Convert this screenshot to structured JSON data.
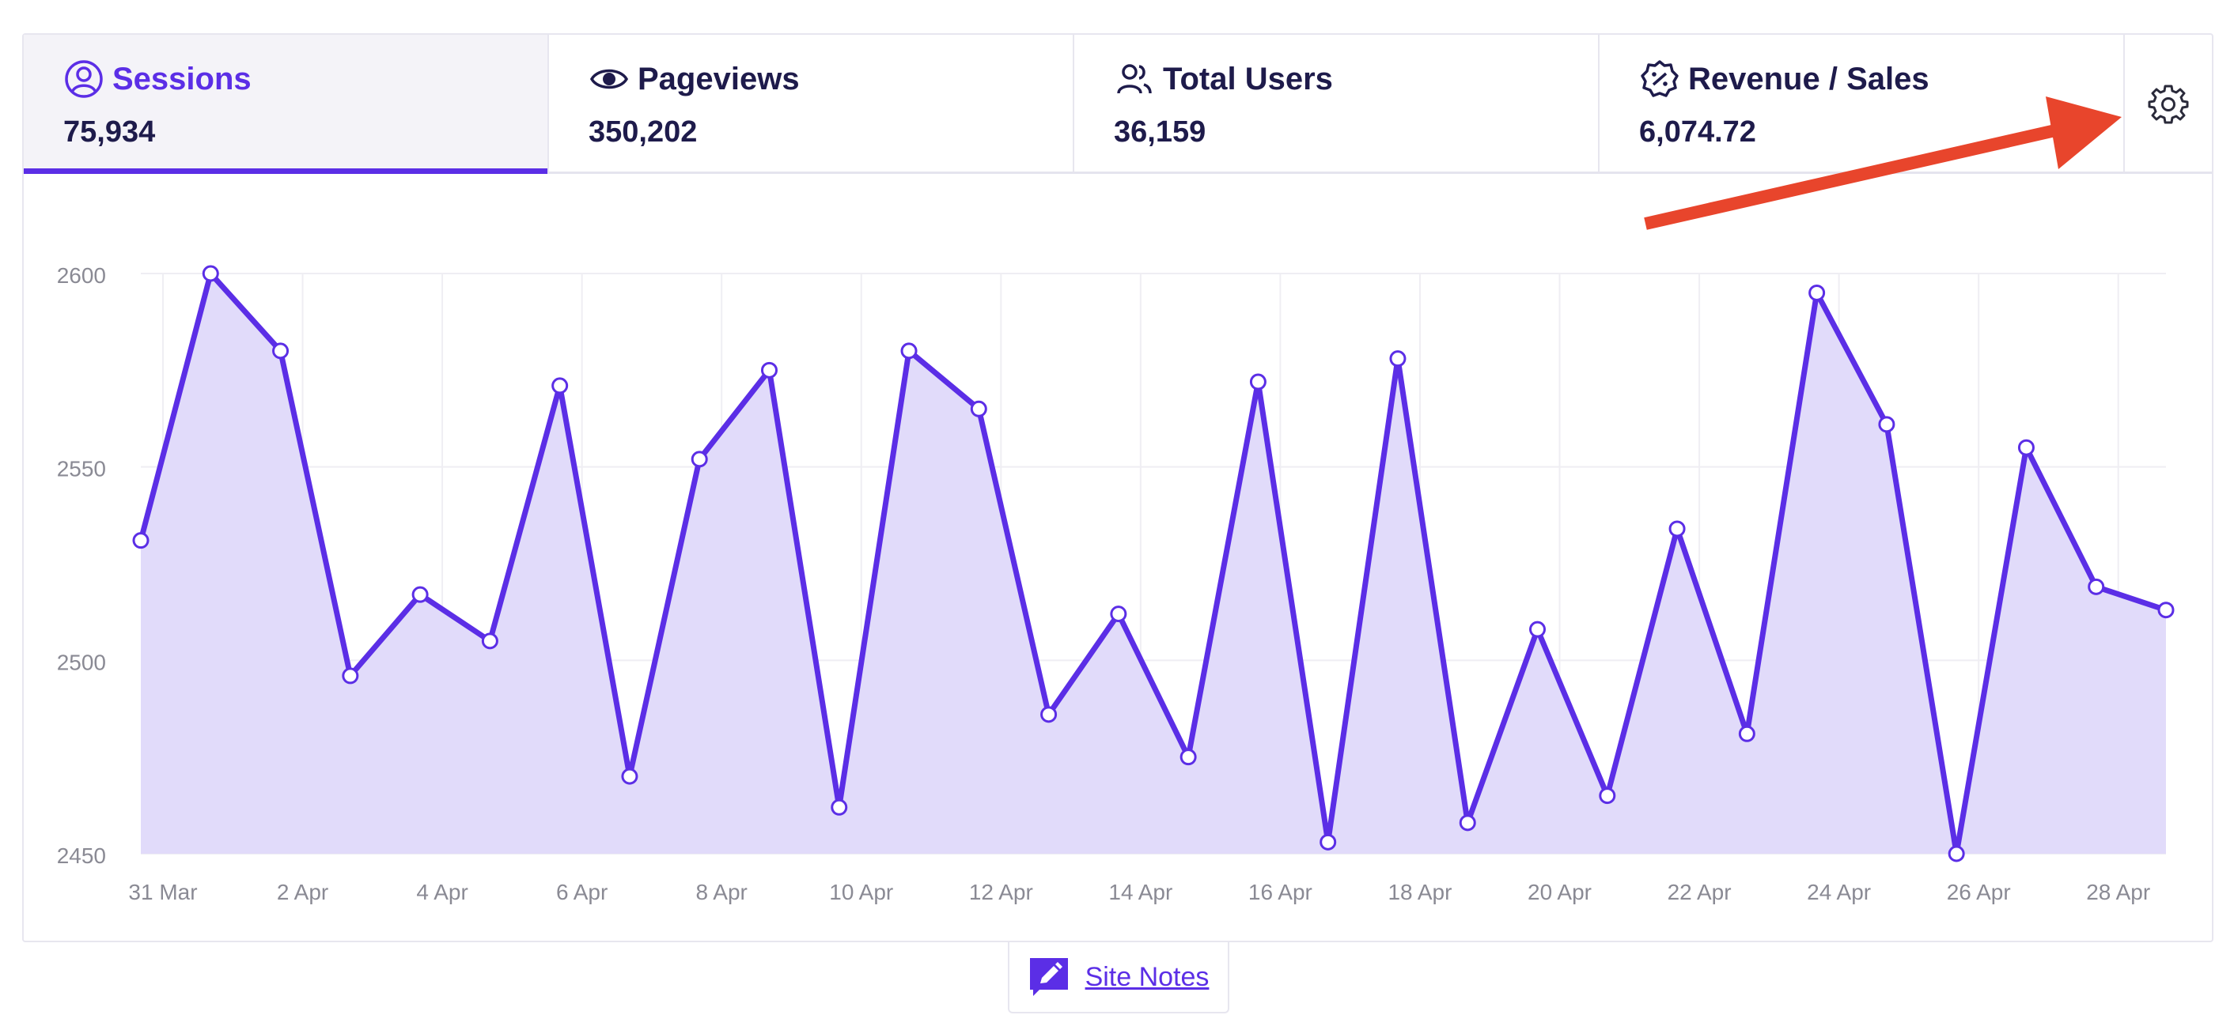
{
  "tabs": [
    {
      "label": "Sessions",
      "value": "75,934",
      "icon": "user-circle-icon"
    },
    {
      "label": "Pageviews",
      "value": "350,202",
      "icon": "eye-icon"
    },
    {
      "label": "Total Users",
      "value": "36,159",
      "icon": "users-icon"
    },
    {
      "label": "Revenue / Sales",
      "value": "6,074.72",
      "icon": "percent-badge-icon"
    }
  ],
  "settings_icon": "gear-icon",
  "site_notes": {
    "label": "Site Notes",
    "icon": "pencil-note-icon"
  },
  "colors": {
    "accent": "#5b2ee6",
    "fill": "#e1dbfa",
    "annotation_arrow": "#e8452c"
  },
  "chart_data": {
    "type": "area",
    "x": [
      "31 Mar",
      "1 Apr",
      "2 Apr",
      "3 Apr",
      "4 Apr",
      "5 Apr",
      "6 Apr",
      "7 Apr",
      "8 Apr",
      "9 Apr",
      "10 Apr",
      "11 Apr",
      "12 Apr",
      "13 Apr",
      "14 Apr",
      "15 Apr",
      "16 Apr",
      "17 Apr",
      "18 Apr",
      "19 Apr",
      "20 Apr",
      "21 Apr",
      "22 Apr",
      "23 Apr",
      "24 Apr",
      "25 Apr",
      "26 Apr",
      "27 Apr",
      "28 Apr",
      "29 Apr"
    ],
    "tick_labels": [
      "31 Mar",
      "2 Apr",
      "4 Apr",
      "6 Apr",
      "8 Apr",
      "10 Apr",
      "12 Apr",
      "14 Apr",
      "16 Apr",
      "18 Apr",
      "20 Apr",
      "22 Apr",
      "24 Apr",
      "26 Apr",
      "28 Apr"
    ],
    "y_ticks": [
      "2600",
      "2550",
      "2500",
      "2450"
    ],
    "series": [
      {
        "values": [
          2531,
          2600,
          2580,
          2496,
          2517,
          2505,
          2571,
          2470,
          2552,
          2575,
          2462,
          2580,
          2565,
          2486,
          2512,
          2475,
          2572,
          2453,
          2578,
          2458,
          2508,
          2465,
          2534,
          2481,
          2595,
          2561,
          2450,
          2555,
          2519,
          2513
        ]
      }
    ],
    "ylim": [
      2450,
      2600
    ],
    "grid": true
  }
}
